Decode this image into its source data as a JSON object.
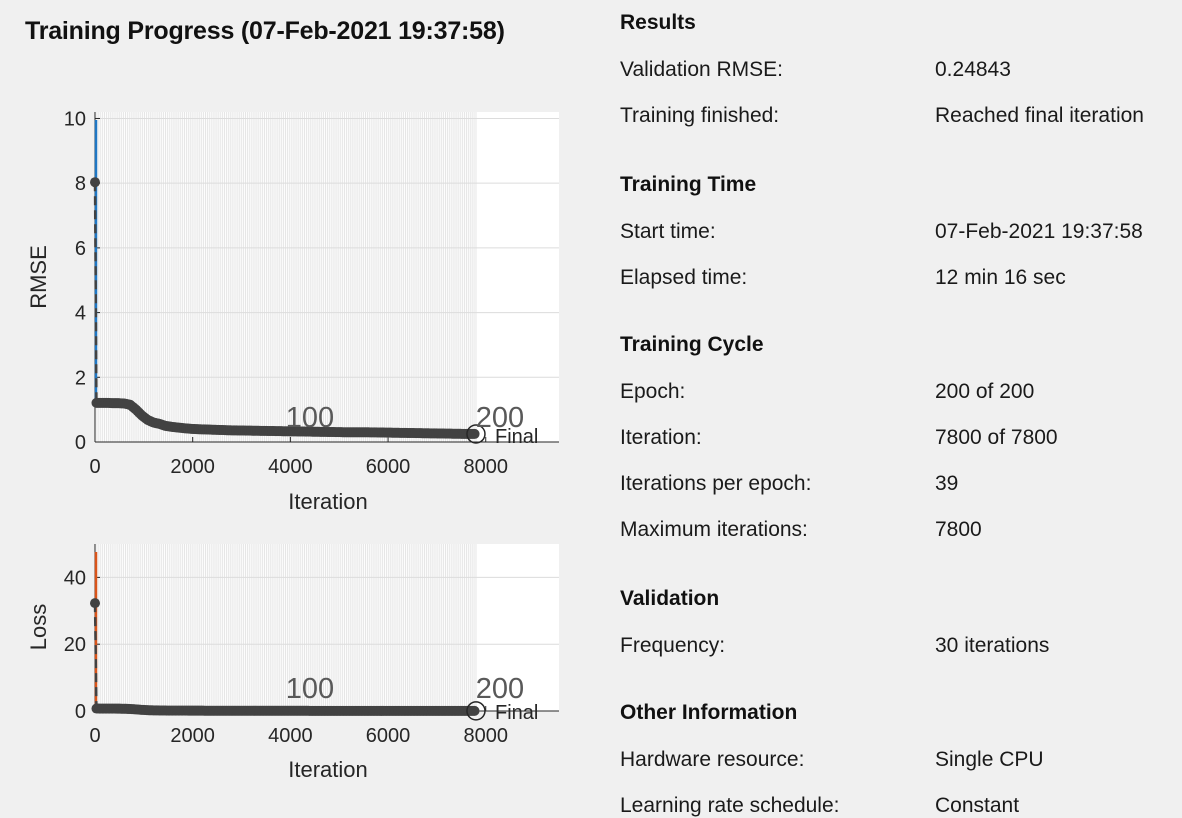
{
  "title": "Training Progress (07-Feb-2021 19:37:58)",
  "colors": {
    "background": "#f0f0f0",
    "plot_background": "#ffffff",
    "rmse_line": "#1f77c4",
    "loss_line": "#d9541a",
    "marker": "#424242",
    "epoch_shading": "#e6e6e6"
  },
  "rmse_plot": {
    "ylabel": "RMSE",
    "xlabel": "Iteration",
    "xticks": [
      "0",
      "2000",
      "4000",
      "6000",
      "8000"
    ],
    "yticks": [
      "0",
      "2",
      "4",
      "6",
      "8",
      "10"
    ],
    "epoch_labels": [
      "100",
      "200"
    ],
    "final_label": "Final"
  },
  "loss_plot": {
    "ylabel": "Loss",
    "xlabel": "Iteration",
    "xticks": [
      "0",
      "2000",
      "4000",
      "6000",
      "8000"
    ],
    "yticks": [
      "0",
      "20",
      "40"
    ],
    "epoch_labels": [
      "100",
      "200"
    ],
    "final_label": "Final"
  },
  "chart_data": [
    {
      "type": "line",
      "ylabel": "RMSE",
      "xlabel": "Iteration",
      "xlim": [
        0,
        9500
      ],
      "ylim": [
        0,
        10.2
      ],
      "series": [
        {
          "x": [
            0,
            30,
            60,
            120,
            240,
            360,
            480,
            600,
            720,
            840,
            960,
            1080,
            1200,
            1320,
            1440,
            1560,
            1800,
            2040,
            2400,
            2800,
            3200,
            3600,
            4000,
            4400,
            4800,
            5200,
            5600,
            6000,
            6400,
            6800,
            7200,
            7600,
            7800
          ],
          "values": [
            8.03,
            1.21,
            1.21,
            1.21,
            1.21,
            1.2,
            1.2,
            1.19,
            1.15,
            1.0,
            0.82,
            0.68,
            0.6,
            0.56,
            0.5,
            0.47,
            0.43,
            0.4,
            0.38,
            0.36,
            0.35,
            0.34,
            0.33,
            0.32,
            0.31,
            0.3,
            0.3,
            0.29,
            0.28,
            0.27,
            0.26,
            0.25,
            0.25
          ]
        }
      ],
      "epoch_markers": [
        {
          "iteration": 3900,
          "epoch": 100
        },
        {
          "iteration": 7800,
          "epoch": 200
        }
      ],
      "final": {
        "iteration": 7800,
        "value": 0.24843
      }
    },
    {
      "type": "line",
      "ylabel": "Loss",
      "xlabel": "Iteration",
      "xlim": [
        0,
        9500
      ],
      "ylim": [
        0,
        50
      ],
      "series": [
        {
          "x": [
            0,
            30,
            60,
            120,
            240,
            360,
            480,
            600,
            720,
            840,
            960,
            1080,
            1200,
            1500,
            2000,
            3000,
            4000,
            5000,
            6000,
            7000,
            7800
          ],
          "values": [
            32.3,
            0.73,
            0.73,
            0.72,
            0.72,
            0.71,
            0.7,
            0.68,
            0.6,
            0.5,
            0.35,
            0.25,
            0.2,
            0.12,
            0.1,
            0.07,
            0.06,
            0.05,
            0.04,
            0.03,
            0.03
          ]
        }
      ],
      "epoch_markers": [
        {
          "iteration": 3900,
          "epoch": 100
        },
        {
          "iteration": 7800,
          "epoch": 200
        }
      ],
      "final": {
        "iteration": 7800,
        "value": 0.03
      }
    }
  ],
  "info": {
    "results": {
      "title": "Results",
      "rows": [
        {
          "label": "Validation RMSE:",
          "value": "0.24843"
        },
        {
          "label": "Training finished:",
          "value": "Reached final iteration"
        }
      ]
    },
    "training_time": {
      "title": "Training Time",
      "rows": [
        {
          "label": "Start time:",
          "value": "07-Feb-2021 19:37:58"
        },
        {
          "label": "Elapsed time:",
          "value": "12 min 16 sec"
        }
      ]
    },
    "training_cycle": {
      "title": "Training Cycle",
      "rows": [
        {
          "label": "Epoch:",
          "value": "200 of 200"
        },
        {
          "label": "Iteration:",
          "value": "7800 of 7800"
        },
        {
          "label": "Iterations per epoch:",
          "value": "39"
        },
        {
          "label": "Maximum iterations:",
          "value": "7800"
        }
      ]
    },
    "validation": {
      "title": "Validation",
      "rows": [
        {
          "label": "Frequency:",
          "value": "30 iterations"
        }
      ]
    },
    "other": {
      "title": "Other Information",
      "rows": [
        {
          "label": "Hardware resource:",
          "value": "Single CPU"
        },
        {
          "label": "Learning rate schedule:",
          "value": "Constant"
        }
      ]
    }
  }
}
